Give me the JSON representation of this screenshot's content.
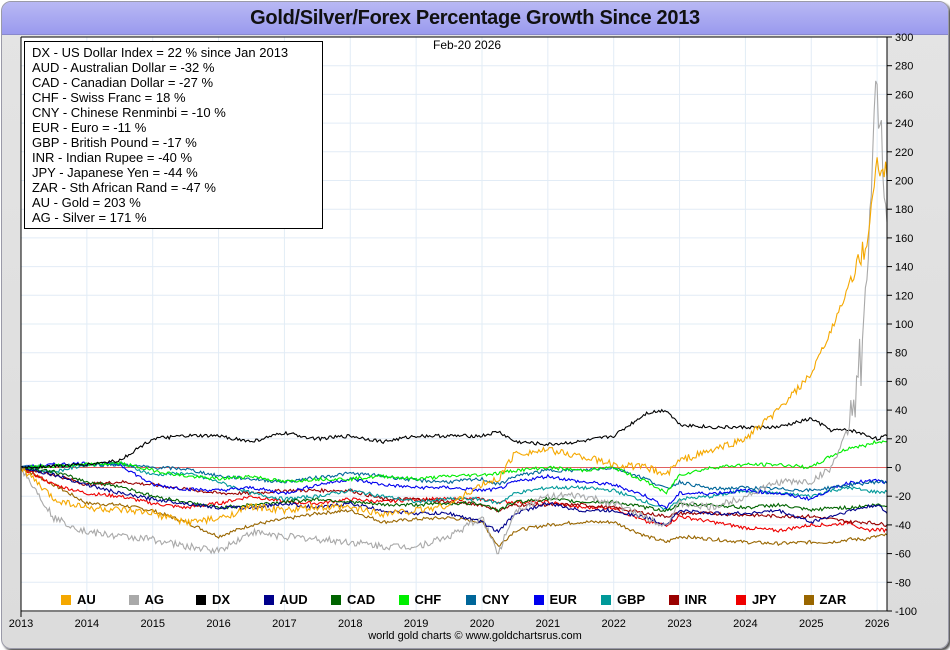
{
  "page": {
    "title": "Gold/Silver/Forex Percentage Growth Since 2013",
    "date_stamp": "Feb-20  2026",
    "credit": "world gold charts © www.goldchartsrus.com"
  },
  "info_box": {
    "lines": [
      "DX - US Dollar Index = 22 % since Jan 2013",
      "AUD - Australian Dollar = -32 %",
      "CAD - Canadian Dollar = -27 %",
      "CHF - Swiss Franc = 18 %",
      "CNY - Chinese Renminbi = -10 %",
      "EUR - Euro = -11 %",
      "GBP - British Pound = -17 %",
      "INR - Indian Rupee = -40 %",
      "JPY - Japanese Yen = -44 %",
      "ZAR - Sth African Rand = -47 %",
      "AU - Gold = 203 %",
      "AG - Silver = 171 %"
    ]
  },
  "chart_data": {
    "type": "line",
    "title": "Gold/Silver/Forex Percentage Growth Since 2013",
    "xlabel": "",
    "ylabel": "",
    "x_ticks": [
      "2013",
      "2014",
      "2015",
      "2016",
      "2017",
      "2018",
      "2019",
      "2020",
      "2021",
      "2022",
      "2023",
      "2024",
      "2025",
      "2026"
    ],
    "xlim": [
      2013.0,
      2026.15
    ],
    "y_ticks": [
      300,
      280,
      260,
      240,
      220,
      200,
      180,
      160,
      140,
      120,
      100,
      80,
      60,
      40,
      20,
      0,
      -20,
      -40,
      -60,
      -80,
      -100
    ],
    "ylim": [
      -100,
      300
    ],
    "y_axis_side": "right",
    "grid": true,
    "zero_line_color": "#e06060",
    "legend_position": "bottom",
    "x": [
      2013.0,
      2013.5,
      2014.0,
      2014.5,
      2015.0,
      2015.5,
      2016.0,
      2016.5,
      2017.0,
      2017.5,
      2018.0,
      2018.5,
      2019.0,
      2019.5,
      2020.0,
      2020.25,
      2020.5,
      2021.0,
      2021.5,
      2022.0,
      2022.5,
      2022.8,
      2023.0,
      2023.5,
      2024.0,
      2024.5,
      2025.0,
      2025.3,
      2025.6,
      2025.8,
      2026.0,
      2026.15
    ],
    "series": [
      {
        "name": "AU",
        "color": "#f5a800",
        "values": [
          0,
          -22,
          -28,
          -30,
          -32,
          -38,
          -36,
          -27,
          -30,
          -28,
          -28,
          -32,
          -30,
          -26,
          -12,
          -8,
          10,
          12,
          8,
          2,
          0,
          -5,
          5,
          12,
          20,
          40,
          65,
          95,
          130,
          150,
          210,
          203
        ]
      },
      {
        "name": "AG",
        "color": "#a9a9a9",
        "values": [
          0,
          -35,
          -45,
          -48,
          -50,
          -55,
          -58,
          -45,
          -48,
          -50,
          -52,
          -55,
          -55,
          -48,
          -35,
          -60,
          -30,
          -20,
          -20,
          -25,
          -35,
          -40,
          -25,
          -28,
          -20,
          -10,
          -10,
          0,
          30,
          90,
          270,
          171
        ]
      },
      {
        "name": "DX",
        "color": "#000000",
        "values": [
          0,
          1,
          2,
          5,
          20,
          22,
          22,
          18,
          24,
          20,
          22,
          18,
          22,
          22,
          22,
          25,
          18,
          16,
          18,
          22,
          38,
          40,
          30,
          28,
          28,
          28,
          34,
          26,
          26,
          23,
          20,
          22
        ]
      },
      {
        "name": "AUD",
        "color": "#00008b",
        "values": [
          0,
          -5,
          -12,
          -18,
          -22,
          -25,
          -28,
          -28,
          -25,
          -28,
          -25,
          -30,
          -32,
          -32,
          -38,
          -45,
          -32,
          -25,
          -30,
          -30,
          -35,
          -40,
          -30,
          -32,
          -32,
          -30,
          -38,
          -34,
          -30,
          -28,
          -26,
          -32
        ]
      },
      {
        "name": "CAD",
        "color": "#006400",
        "values": [
          0,
          -3,
          -10,
          -13,
          -20,
          -24,
          -28,
          -26,
          -24,
          -22,
          -24,
          -26,
          -26,
          -25,
          -25,
          -30,
          -24,
          -22,
          -24,
          -24,
          -28,
          -30,
          -26,
          -26,
          -28,
          -26,
          -30,
          -28,
          -28,
          -27,
          -26,
          -27
        ]
      },
      {
        "name": "CHF",
        "color": "#00ee00",
        "values": [
          0,
          1,
          2,
          3,
          -2,
          -6,
          -8,
          -6,
          -10,
          -8,
          -8,
          -6,
          -8,
          -6,
          -5,
          -4,
          -2,
          0,
          -2,
          0,
          -10,
          -18,
          -5,
          0,
          2,
          2,
          0,
          8,
          14,
          15,
          18,
          18
        ]
      },
      {
        "name": "CNY",
        "color": "#006699",
        "values": [
          0,
          1,
          2,
          2,
          0,
          -1,
          -6,
          -8,
          -10,
          -7,
          -4,
          -6,
          -9,
          -10,
          -8,
          -12,
          -6,
          -2,
          -2,
          0,
          -8,
          -15,
          -10,
          -15,
          -14,
          -15,
          -16,
          -14,
          -12,
          -11,
          -10,
          -10
        ]
      },
      {
        "name": "EUR",
        "color": "#0000ee",
        "values": [
          0,
          2,
          3,
          2,
          -12,
          -15,
          -16,
          -14,
          -18,
          -12,
          -8,
          -12,
          -14,
          -14,
          -16,
          -15,
          -10,
          -6,
          -10,
          -12,
          -20,
          -28,
          -18,
          -18,
          -16,
          -18,
          -22,
          -15,
          -10,
          -10,
          -9,
          -11
        ]
      },
      {
        "name": "GBP",
        "color": "#009999",
        "values": [
          0,
          -3,
          2,
          3,
          -5,
          -4,
          -10,
          -18,
          -22,
          -20,
          -16,
          -20,
          -24,
          -22,
          -22,
          -25,
          -18,
          -14,
          -14,
          -16,
          -24,
          -30,
          -22,
          -20,
          -16,
          -18,
          -20,
          -16,
          -14,
          -16,
          -17,
          -17
        ]
      },
      {
        "name": "INR",
        "color": "#990000",
        "values": [
          0,
          -5,
          -12,
          -10,
          -12,
          -15,
          -18,
          -18,
          -16,
          -16,
          -16,
          -22,
          -22,
          -24,
          -26,
          -30,
          -26,
          -26,
          -26,
          -28,
          -32,
          -34,
          -32,
          -32,
          -33,
          -34,
          -34,
          -36,
          -38,
          -38,
          -39,
          -40
        ]
      },
      {
        "name": "JPY",
        "color": "#ee0000",
        "values": [
          0,
          -12,
          -18,
          -20,
          -25,
          -28,
          -25,
          -20,
          -24,
          -25,
          -22,
          -24,
          -22,
          -22,
          -22,
          -24,
          -24,
          -24,
          -28,
          -28,
          -38,
          -40,
          -34,
          -38,
          -42,
          -44,
          -40,
          -40,
          -38,
          -44,
          -43,
          -44
        ]
      },
      {
        "name": "ZAR",
        "color": "#996600",
        "values": [
          0,
          -12,
          -25,
          -26,
          -30,
          -38,
          -48,
          -40,
          -36,
          -32,
          -30,
          -38,
          -36,
          -35,
          -38,
          -55,
          -44,
          -40,
          -38,
          -38,
          -48,
          -52,
          -48,
          -50,
          -52,
          -53,
          -52,
          -52,
          -50,
          -50,
          -48,
          -47
        ]
      }
    ]
  }
}
